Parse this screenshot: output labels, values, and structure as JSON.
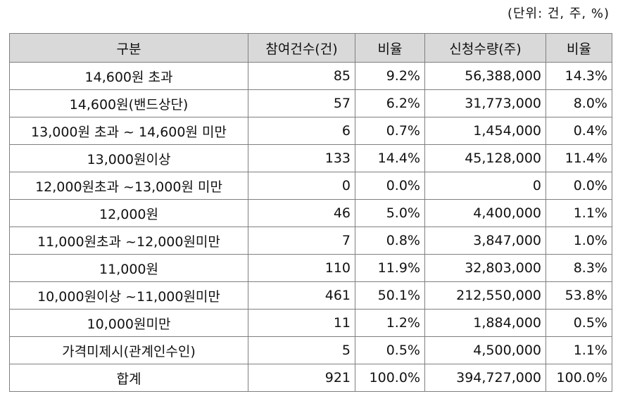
{
  "unit_note": "(단위: 건, 주, %)",
  "table": {
    "headers": [
      "구분",
      "참여건수(건)",
      "비율",
      "신청수량(주)",
      "비율"
    ],
    "rows": [
      [
        "14,600원 초과",
        "85",
        "9.2%",
        "56,388,000",
        "14.3%"
      ],
      [
        "14,600원(밴드상단)",
        "57",
        "6.2%",
        "31,773,000",
        "8.0%"
      ],
      [
        "13,000원 초과 ~ 14,600원 미만",
        "6",
        "0.7%",
        "1,454,000",
        "0.4%"
      ],
      [
        "13,000원이상",
        "133",
        "14.4%",
        "45,128,000",
        "11.4%"
      ],
      [
        "12,000원초과 ~13,000원 미만",
        "0",
        "0.0%",
        "0",
        "0.0%"
      ],
      [
        "12,000원",
        "46",
        "5.0%",
        "4,400,000",
        "1.1%"
      ],
      [
        "11,000원초과 ~12,000원미만",
        "7",
        "0.8%",
        "3,847,000",
        "1.0%"
      ],
      [
        "11,000원",
        "110",
        "11.9%",
        "32,803,000",
        "8.3%"
      ],
      [
        "10,000원이상 ~11,000원미만",
        "461",
        "50.1%",
        "212,550,000",
        "53.8%"
      ],
      [
        "10,000원미만",
        "11",
        "1.2%",
        "1,884,000",
        "0.5%"
      ],
      [
        "가격미제시(관계인수인)",
        "5",
        "0.5%",
        "4,500,000",
        "1.1%"
      ],
      [
        "합계",
        "921",
        "100.0%",
        "394,727,000",
        "100.0%"
      ]
    ]
  }
}
